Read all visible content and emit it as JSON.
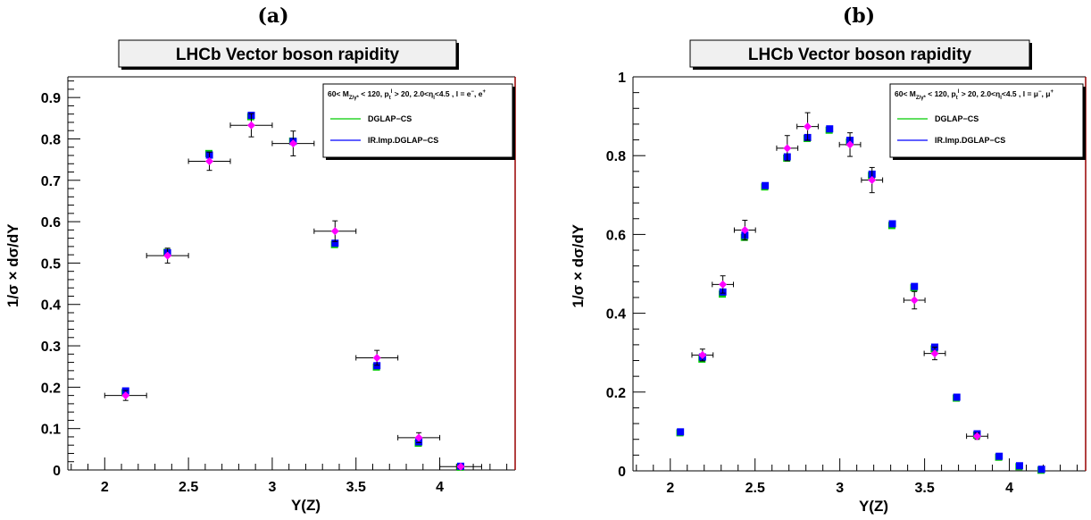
{
  "chart_data": [
    {
      "type": "scatter",
      "panel_label": "(a)",
      "title": "LHCb Vector boson rapidity",
      "xlabel": "Y(Z)",
      "ylabel": "1/σ × dσ/dY",
      "xlim": [
        1.78,
        4.45
      ],
      "ylim": [
        0,
        0.95
      ],
      "xticks": [
        2,
        2.5,
        3,
        3.5,
        4
      ],
      "xtick_labels": [
        "2",
        "2.5",
        "3",
        "3.5",
        "4"
      ],
      "yticks": [
        0,
        0.1,
        0.2,
        0.3,
        0.4,
        0.5,
        0.6,
        0.7,
        0.8,
        0.9
      ],
      "ytick_labels": [
        "0",
        "0.1",
        "0.2",
        "0.3",
        "0.4",
        "0.5",
        "0.6",
        "0.7",
        "0.8",
        "0.9"
      ],
      "legend": {
        "header": "60< M_{Z/γ*} < 120, p_t^l > 20, 2.0<η_l<4.5 , l = e⁻, e⁺",
        "header_parts": {
          "a": "60< M",
          "sub1": "Z/γ*",
          "b": " < 120, p",
          "sub2": "t",
          "sup2": "l",
          "c": " > 20, 2.0<η",
          "sub3": "l",
          "d": "<4.5 , l = e",
          "sup4": "−",
          "e": ", e",
          "sup5": "+"
        },
        "entries": [
          "DGLAP−CS",
          "IR.Imp.DGLAP−CS"
        ],
        "placement": "top-right"
      },
      "colors": {
        "data": "#ff00ff",
        "dglap": "#00cc00",
        "irimp": "#0000ff",
        "frame_right": "#990000"
      },
      "data_points": {
        "x": [
          2.125,
          2.375,
          2.625,
          2.875,
          3.125,
          3.375,
          3.625,
          3.875,
          4.125
        ],
        "xerr": [
          0.125,
          0.125,
          0.125,
          0.125,
          0.125,
          0.125,
          0.125,
          0.125,
          0.125
        ],
        "y": [
          0.18,
          0.518,
          0.746,
          0.833,
          0.789,
          0.577,
          0.271,
          0.078,
          0.008
        ],
        "yerr": [
          0.012,
          0.018,
          0.022,
          0.028,
          0.03,
          0.025,
          0.018,
          0.012,
          0.004
        ]
      },
      "series": [
        {
          "name": "DGLAP−CS",
          "x": [
            2.125,
            2.375,
            2.625,
            2.875,
            3.125,
            3.375,
            3.625,
            3.875,
            4.125
          ],
          "values": [
            0.188,
            0.527,
            0.766,
            0.855,
            0.796,
            0.546,
            0.25,
            0.066,
            0.008
          ]
        },
        {
          "name": "IR.Imp.DGLAP−CS",
          "x": [
            2.125,
            2.375,
            2.625,
            2.875,
            3.125,
            3.375,
            3.625,
            3.875,
            4.125
          ],
          "values": [
            0.191,
            0.525,
            0.761,
            0.857,
            0.794,
            0.548,
            0.252,
            0.068,
            0.009
          ]
        }
      ]
    },
    {
      "type": "scatter",
      "panel_label": "(b)",
      "title": "LHCb Vector boson rapidity",
      "xlabel": "Y(Z)",
      "ylabel": "1/σ × dσ/dY",
      "xlim": [
        1.78,
        4.45
      ],
      "ylim": [
        0,
        1.0
      ],
      "xticks": [
        2,
        2.5,
        3,
        3.5,
        4
      ],
      "xtick_labels": [
        "2",
        "2.5",
        "3",
        "3.5",
        "4"
      ],
      "yticks": [
        0,
        0.2,
        0.4,
        0.6,
        0.8,
        1.0
      ],
      "ytick_labels": [
        "0",
        "0.2",
        "0.4",
        "0.6",
        "0.8",
        "1"
      ],
      "legend": {
        "header": "60< M_{Z/γ*} < 120, p_t^l > 20, 2.0<η_l<4.5 , l = μ⁻, μ⁺",
        "header_parts": {
          "a": "60< M",
          "sub1": "Z/γ*",
          "b": " < 120, p",
          "sub2": "t",
          "sup2": "l",
          "c": " > 20, 2.0<η",
          "sub3": "l",
          "d": "<4.5 , l = μ",
          "sup4": "−",
          "e": ", μ",
          "sup5": "+"
        },
        "entries": [
          "DGLAP−CS",
          "IR.Imp.DGLAP−CS"
        ],
        "placement": "top-right"
      },
      "colors": {
        "data": "#ff00ff",
        "dglap": "#00cc00",
        "irimp": "#0000ff",
        "frame_right": "#990000"
      },
      "data_points": {
        "x": [
          2.19,
          2.31,
          2.44,
          2.69,
          2.81,
          3.06,
          3.19,
          3.44,
          3.56,
          3.81
        ],
        "xerr": [
          0.0625,
          0.0625,
          0.0625,
          0.0625,
          0.0625,
          0.0625,
          0.0625,
          0.0625,
          0.0625,
          0.0625
        ],
        "y": [
          0.294,
          0.473,
          0.611,
          0.819,
          0.874,
          0.828,
          0.738,
          0.433,
          0.298,
          0.088
        ],
        "yerr": [
          0.015,
          0.022,
          0.025,
          0.032,
          0.035,
          0.03,
          0.032,
          0.022,
          0.016,
          0.008
        ]
      },
      "series": [
        {
          "name": "DGLAP−CS",
          "x": [
            2.06,
            2.19,
            2.31,
            2.44,
            2.56,
            2.69,
            2.81,
            2.94,
            3.06,
            3.19,
            3.31,
            3.44,
            3.56,
            3.69,
            3.81,
            3.94,
            4.06,
            4.19
          ],
          "values": [
            0.098,
            0.285,
            0.45,
            0.594,
            0.722,
            0.795,
            0.845,
            0.866,
            0.836,
            0.751,
            0.624,
            0.466,
            0.311,
            0.186,
            0.092,
            0.036,
            0.012,
            0.003
          ]
        },
        {
          "name": "IR.Imp.DGLAP−CS",
          "x": [
            2.06,
            2.19,
            2.31,
            2.44,
            2.56,
            2.69,
            2.81,
            2.94,
            3.06,
            3.19,
            3.31,
            3.44,
            3.56,
            3.69,
            3.81,
            3.94,
            4.06,
            4.19
          ],
          "values": [
            0.099,
            0.289,
            0.454,
            0.598,
            0.724,
            0.797,
            0.846,
            0.868,
            0.839,
            0.753,
            0.627,
            0.468,
            0.314,
            0.187,
            0.094,
            0.037,
            0.013,
            0.004
          ]
        }
      ]
    }
  ]
}
